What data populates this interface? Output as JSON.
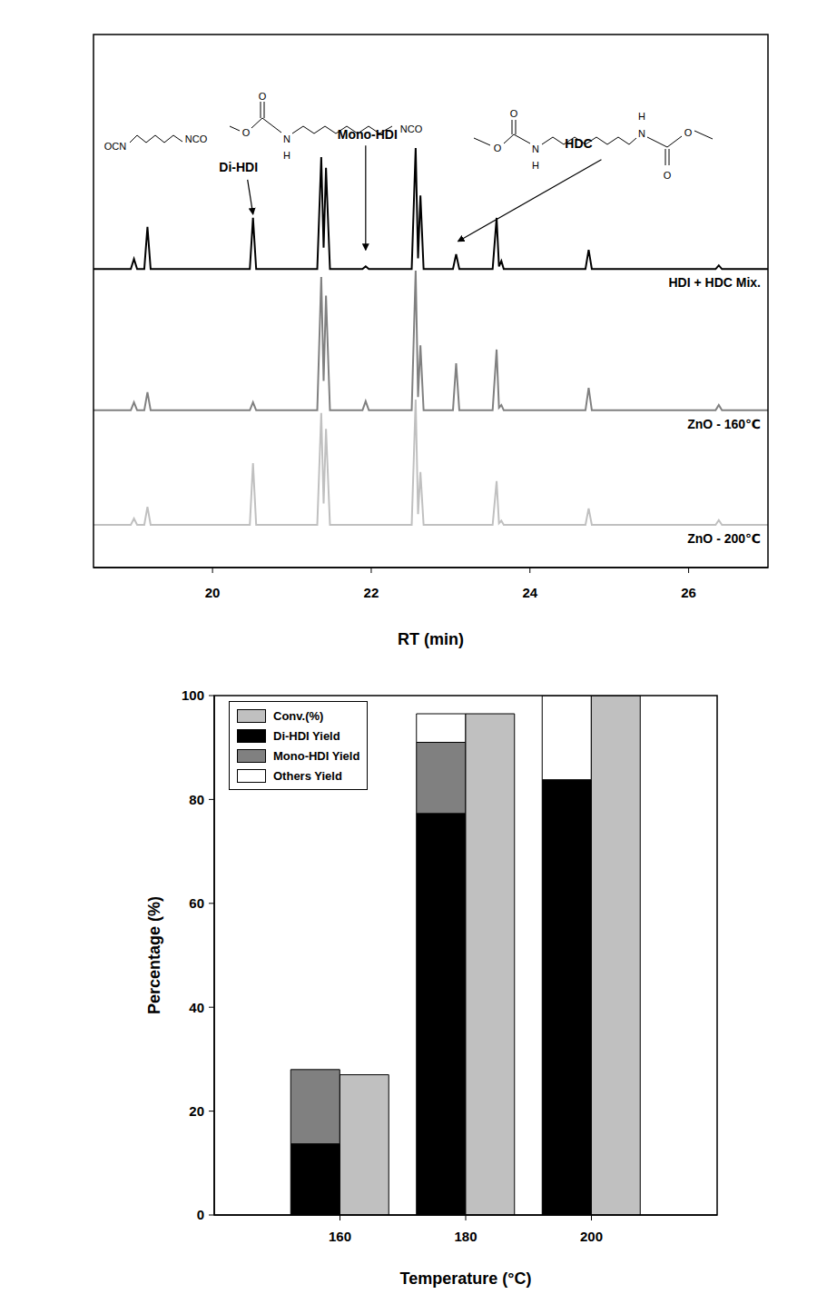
{
  "chart_data": [
    {
      "type": "line",
      "x_label": "RT (min)",
      "x": [
        18.5,
        18.97,
        19.01,
        19.05,
        19.14,
        19.18,
        19.22,
        20.47,
        20.51,
        20.55,
        21.32,
        21.37,
        21.4,
        21.43,
        21.48,
        21.89,
        21.93,
        21.97,
        22.51,
        22.56,
        22.59,
        22.62,
        22.66,
        23.03,
        23.07,
        23.11,
        23.53,
        23.58,
        23.61,
        23.64,
        23.67,
        24.7,
        24.74,
        24.78,
        26.34,
        26.38,
        26.42,
        27
      ],
      "xlim": [
        18.5,
        27
      ],
      "xticks": [
        20,
        22,
        24,
        26
      ],
      "ylim": [
        0,
        100
      ],
      "yticks": [],
      "tick_labels": "x",
      "series": [
        {
          "name": "HDI + HDC Mix.",
          "color": "#000000",
          "values": [
            56,
            56,
            57.9,
            56,
            56,
            63.9,
            56,
            56,
            65.6,
            56,
            56,
            77,
            60,
            75,
            56,
            56,
            56.5,
            56,
            56,
            78.7,
            58,
            69.8,
            56,
            56,
            58.8,
            56,
            56,
            65.6,
            56.5,
            57.5,
            56,
            56,
            59.6,
            56,
            56,
            56.7,
            56,
            56
          ]
        },
        {
          "name": "ZnO - 160℃",
          "color": "#808080",
          "values": [
            29.5,
            29.5,
            31,
            29.5,
            29.5,
            32.9,
            29.5,
            29.5,
            31,
            29.5,
            29.5,
            54.5,
            35,
            51,
            29.5,
            29.5,
            31.2,
            29.5,
            29.5,
            55.7,
            32,
            41.7,
            29.5,
            29.5,
            38.3,
            29.5,
            29.5,
            40.9,
            30,
            30.5,
            29.5,
            29.5,
            33.7,
            29.5,
            29.5,
            30.5,
            29.5,
            29.5
          ]
        },
        {
          "name": "ZnO - 200℃",
          "color": "#c0c0c0",
          "values": [
            8,
            8,
            9.2,
            8,
            8,
            11.4,
            8,
            8,
            19.6,
            8,
            8,
            29,
            12,
            26,
            8,
            8,
            8,
            8,
            8,
            31.5,
            10,
            17.9,
            8,
            8,
            8,
            8,
            8,
            16.2,
            8.3,
            8.8,
            8,
            8,
            11.1,
            8,
            8,
            8.9,
            8,
            8
          ]
        }
      ],
      "annotations": [
        {
          "text": "Di-HDI",
          "x": 20.51
        },
        {
          "text": "Mono-HDI",
          "x": 21.93
        },
        {
          "text": "HDC",
          "x": 23.07
        }
      ],
      "structures": [
        {
          "labels": [
            "OCN",
            "NCO"
          ]
        },
        {
          "labels": [
            "O",
            "O",
            "N",
            "H",
            "NCO"
          ]
        },
        {
          "labels": [
            "O",
            "O",
            "N",
            "H",
            "N",
            "H",
            "O",
            "O"
          ]
        }
      ]
    },
    {
      "type": "bar",
      "x_label": "Temperature (°C)",
      "y_label": "Percentage (%)",
      "x": [
        160,
        180,
        200
      ],
      "xlim": [
        140,
        220
      ],
      "xticks": [
        160,
        180,
        200
      ],
      "ylim": [
        0,
        100
      ],
      "yticks": [
        0,
        20,
        40,
        60,
        80,
        100
      ],
      "legend": "upper left",
      "series": [
        {
          "name": "Conv.(%)",
          "color": "#c0c0c0",
          "stacked": false,
          "values": [
            27,
            96.5,
            100
          ]
        },
        {
          "name": "Di-HDI Yield",
          "color": "#000000",
          "stacked": true,
          "values": [
            13.7,
            77.3,
            83.8
          ]
        },
        {
          "name": "Mono-HDI Yield",
          "color": "#808080",
          "stacked": true,
          "values": [
            14.3,
            13.7,
            0
          ]
        },
        {
          "name": "Others Yield",
          "color": "#ffffff",
          "stacked": true,
          "values": [
            0,
            5.5,
            16.2
          ]
        }
      ]
    }
  ]
}
